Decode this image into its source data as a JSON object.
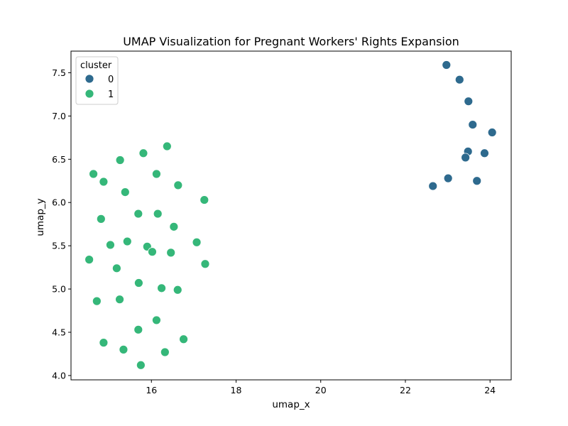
{
  "chart_data": {
    "type": "scatter",
    "title": "UMAP Visualization for Pregnant Workers' Rights Expansion",
    "xlabel": "umap_x",
    "ylabel": "umap_y",
    "xlim": [
      14.1,
      24.5
    ],
    "ylim": [
      3.95,
      7.75
    ],
    "xticks": [
      16,
      18,
      20,
      22,
      24
    ],
    "yticks": [
      4.0,
      4.5,
      5.0,
      5.5,
      6.0,
      6.5,
      7.0,
      7.5
    ],
    "grid": false,
    "legend": {
      "title": "cluster",
      "placement": "top-left"
    },
    "series": [
      {
        "name": "0",
        "color": "#2e6a8e",
        "points": [
          {
            "x": 22.97,
            "y": 7.59
          },
          {
            "x": 23.28,
            "y": 7.42
          },
          {
            "x": 23.49,
            "y": 7.17
          },
          {
            "x": 23.59,
            "y": 6.9
          },
          {
            "x": 24.05,
            "y": 6.81
          },
          {
            "x": 23.48,
            "y": 6.59
          },
          {
            "x": 23.87,
            "y": 6.57
          },
          {
            "x": 23.42,
            "y": 6.52
          },
          {
            "x": 23.01,
            "y": 6.28
          },
          {
            "x": 23.69,
            "y": 6.25
          },
          {
            "x": 22.65,
            "y": 6.19
          }
        ]
      },
      {
        "name": "1",
        "color": "#35b779",
        "points": [
          {
            "x": 16.37,
            "y": 6.65
          },
          {
            "x": 15.81,
            "y": 6.57
          },
          {
            "x": 15.26,
            "y": 6.49
          },
          {
            "x": 14.63,
            "y": 6.33
          },
          {
            "x": 16.12,
            "y": 6.33
          },
          {
            "x": 14.87,
            "y": 6.24
          },
          {
            "x": 16.63,
            "y": 6.2
          },
          {
            "x": 15.38,
            "y": 6.12
          },
          {
            "x": 17.25,
            "y": 6.03
          },
          {
            "x": 15.69,
            "y": 5.87
          },
          {
            "x": 16.15,
            "y": 5.87
          },
          {
            "x": 14.81,
            "y": 5.81
          },
          {
            "x": 16.53,
            "y": 5.72
          },
          {
            "x": 15.43,
            "y": 5.55
          },
          {
            "x": 17.07,
            "y": 5.54
          },
          {
            "x": 15.03,
            "y": 5.51
          },
          {
            "x": 15.9,
            "y": 5.49
          },
          {
            "x": 16.02,
            "y": 5.43
          },
          {
            "x": 16.46,
            "y": 5.42
          },
          {
            "x": 14.53,
            "y": 5.34
          },
          {
            "x": 17.27,
            "y": 5.29
          },
          {
            "x": 15.18,
            "y": 5.24
          },
          {
            "x": 15.7,
            "y": 5.07
          },
          {
            "x": 16.24,
            "y": 5.01
          },
          {
            "x": 16.62,
            "y": 4.99
          },
          {
            "x": 15.25,
            "y": 4.88
          },
          {
            "x": 14.71,
            "y": 4.86
          },
          {
            "x": 16.12,
            "y": 4.64
          },
          {
            "x": 15.69,
            "y": 4.53
          },
          {
            "x": 16.76,
            "y": 4.42
          },
          {
            "x": 14.87,
            "y": 4.38
          },
          {
            "x": 15.34,
            "y": 4.3
          },
          {
            "x": 16.32,
            "y": 4.27
          },
          {
            "x": 15.75,
            "y": 4.12
          }
        ]
      }
    ]
  }
}
